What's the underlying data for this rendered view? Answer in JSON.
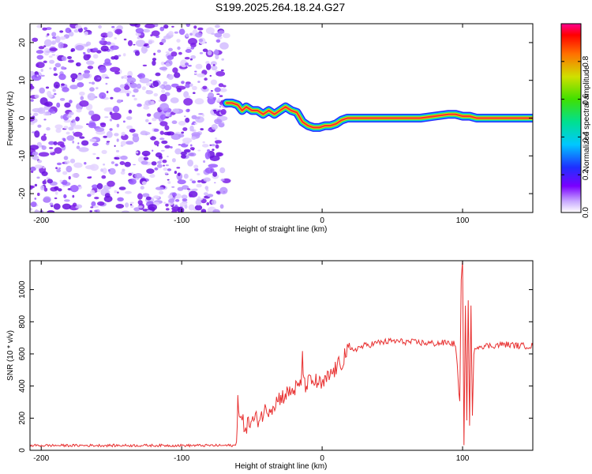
{
  "title": "S199.2025.264.18.24.G27",
  "colors": {
    "signal": "#e83030",
    "scatter": "#7b1fe8",
    "axis": "#000000"
  },
  "chart_data": [
    {
      "type": "heatmap",
      "xlabel": "Height of straight line (km)",
      "ylabel": "Frequency (Hz)",
      "xlim": [
        -208,
        150
      ],
      "ylim": [
        -25,
        25
      ],
      "x_ticks": [
        "-200",
        "-100",
        "0",
        "100"
      ],
      "y_ticks": [
        "20",
        "10",
        "0",
        "-10",
        "-20"
      ],
      "noise_region_x": [
        -208,
        -68
      ],
      "ridge": {
        "x": [
          -68,
          -64,
          -60,
          -57,
          -54,
          -50,
          -46,
          -42,
          -38,
          -34,
          -30,
          -26,
          -22,
          -18,
          -14,
          -10,
          -6,
          -2,
          2,
          6,
          10,
          14,
          18,
          22,
          26,
          30,
          40,
          50,
          60,
          70,
          80,
          90,
          95,
          100,
          105,
          110,
          120,
          130,
          140,
          150
        ],
        "freq": [
          4,
          4,
          3.5,
          2,
          3,
          2,
          2,
          1,
          2,
          1,
          2,
          3,
          2,
          1.5,
          -1,
          -2,
          -2.5,
          -2.5,
          -2,
          -2,
          -1.5,
          -0.5,
          0,
          0,
          0,
          0,
          0,
          0,
          0,
          0,
          0.5,
          1,
          1,
          0.5,
          0.5,
          0,
          0,
          0,
          0,
          0
        ]
      },
      "colorbar": {
        "label": "Normalized spectral amplitude",
        "ticks": [
          "0.0",
          "0.2",
          "0.4",
          "0.6",
          "0.8"
        ],
        "range": [
          0,
          1
        ]
      }
    },
    {
      "type": "line",
      "xlabel": "Height of straight line (km)",
      "ylabel": "SNR (10 * v/v)",
      "xlim": [
        -208,
        150
      ],
      "ylim": [
        0,
        1180
      ],
      "x_ticks": [
        "-200",
        "-100",
        "0",
        "100"
      ],
      "y_ticks": [
        "0",
        "200",
        "400",
        "600",
        "800",
        "1000"
      ],
      "series": [
        {
          "name": "SNR",
          "x": [
            -208,
            -180,
            -150,
            -120,
            -100,
            -80,
            -61,
            -60,
            -59,
            -57,
            -55,
            -50,
            -45,
            -40,
            -35,
            -30,
            -25,
            -20,
            -15,
            -14,
            -13,
            -10,
            -5,
            0,
            5,
            10,
            15,
            16,
            20,
            30,
            40,
            50,
            60,
            70,
            80,
            90,
            95,
            98,
            99,
            100,
            101,
            102,
            103,
            104,
            105,
            106,
            107,
            108,
            110,
            120,
            130,
            140,
            150
          ],
          "values": [
            30,
            30,
            30,
            30,
            30,
            30,
            30,
            370,
            200,
            180,
            150,
            180,
            200,
            250,
            280,
            330,
            350,
            380,
            400,
            620,
            400,
            420,
            430,
            400,
            460,
            510,
            560,
            600,
            620,
            650,
            670,
            680,
            675,
            670,
            665,
            670,
            660,
            300,
            1050,
            1170,
            50,
            900,
            200,
            950,
            150,
            900,
            200,
            600,
            650,
            650,
            660,
            650,
            650
          ]
        }
      ]
    }
  ]
}
